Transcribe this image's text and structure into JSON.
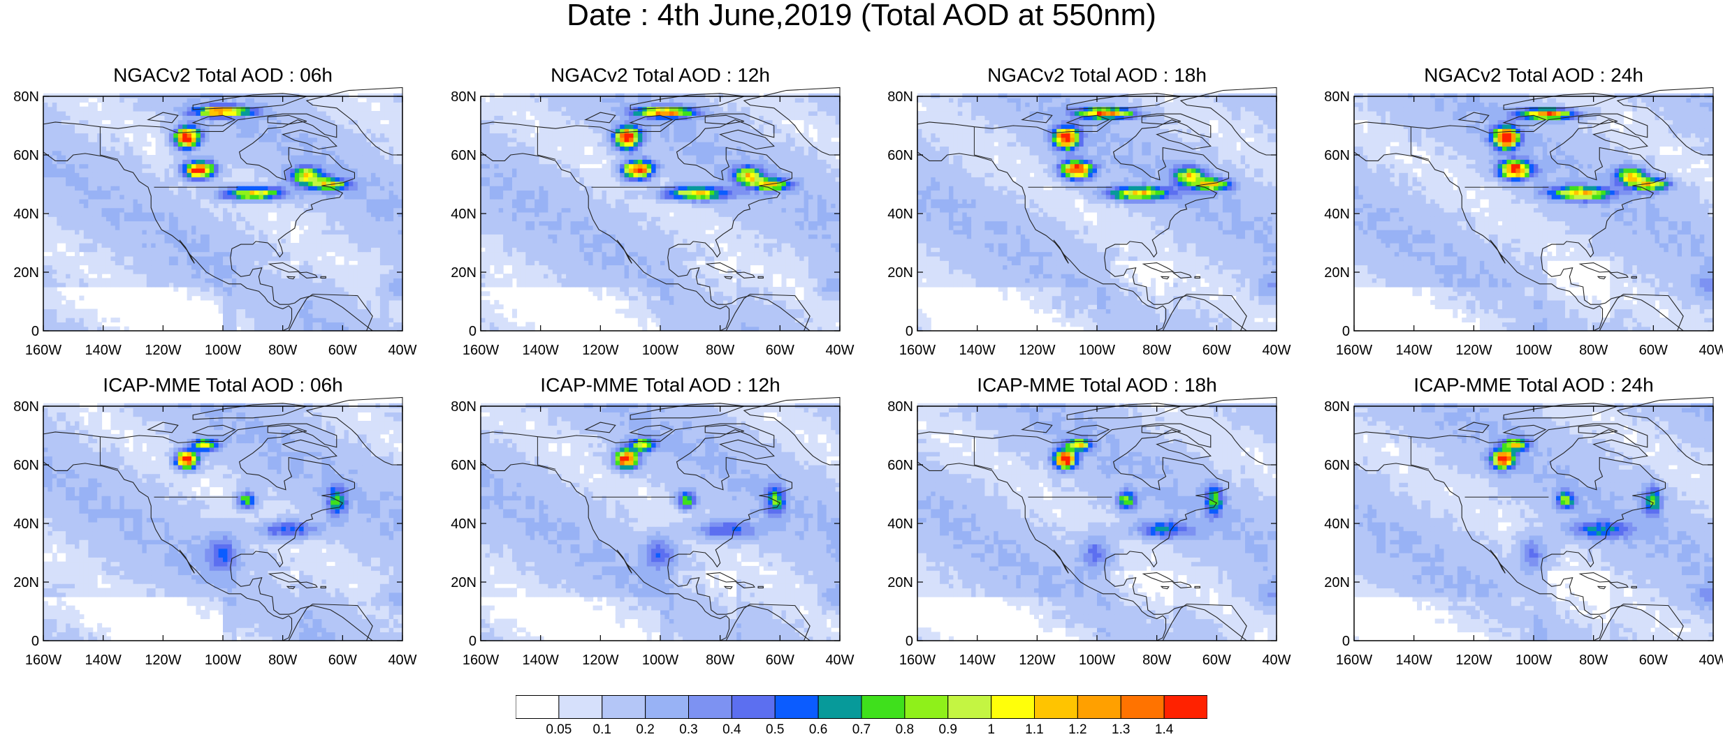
{
  "figure": {
    "title": "Date : 4th June,2019 (Total AOD at 550nm)"
  },
  "axes": {
    "lat_labels": [
      "80N",
      "60N",
      "40N",
      "20N",
      "0"
    ],
    "lat_values": [
      80,
      60,
      40,
      20,
      0
    ],
    "lon_labels": [
      "160W",
      "140W",
      "120W",
      "100W",
      "80W",
      "60W",
      "40W"
    ],
    "lon_values": [
      -160,
      -140,
      -120,
      -100,
      -80,
      -60,
      -40
    ],
    "lat_range": [
      0,
      80
    ],
    "lon_range": [
      -160,
      -40
    ]
  },
  "panels": [
    {
      "title": "NGACv2 Total AOD : 06h",
      "model": "NGACv2",
      "hour": 6
    },
    {
      "title": "NGACv2 Total AOD : 12h",
      "model": "NGACv2",
      "hour": 12
    },
    {
      "title": "NGACv2 Total AOD : 18h",
      "model": "NGACv2",
      "hour": 18
    },
    {
      "title": "NGACv2 Total AOD : 24h",
      "model": "NGACv2",
      "hour": 24
    },
    {
      "title": "ICAP-MME Total AOD : 06h",
      "model": "ICAP-MME",
      "hour": 6
    },
    {
      "title": "ICAP-MME Total AOD : 12h",
      "model": "ICAP-MME",
      "hour": 12
    },
    {
      "title": "ICAP-MME Total AOD : 18h",
      "model": "ICAP-MME",
      "hour": 18
    },
    {
      "title": "ICAP-MME Total AOD : 24h",
      "model": "ICAP-MME",
      "hour": 24
    }
  ],
  "colorbar": {
    "labels": [
      "0.05",
      "0.1",
      "0.2",
      "0.3",
      "0.4",
      "0.5",
      "0.6",
      "0.7",
      "0.8",
      "0.9",
      "1",
      "1.1",
      "1.2",
      "1.3",
      "1.4"
    ],
    "colors": [
      "#ffffff",
      "#d6e0fb",
      "#b4c6f7",
      "#98b2f5",
      "#7d92f2",
      "#5c6ff0",
      "#0b5cff",
      "#079a9a",
      "#3fe01c",
      "#8ff01a",
      "#c4f542",
      "#ffff0a",
      "#ffc400",
      "#ffa000",
      "#ff7300",
      "#ff2200"
    ]
  }
}
